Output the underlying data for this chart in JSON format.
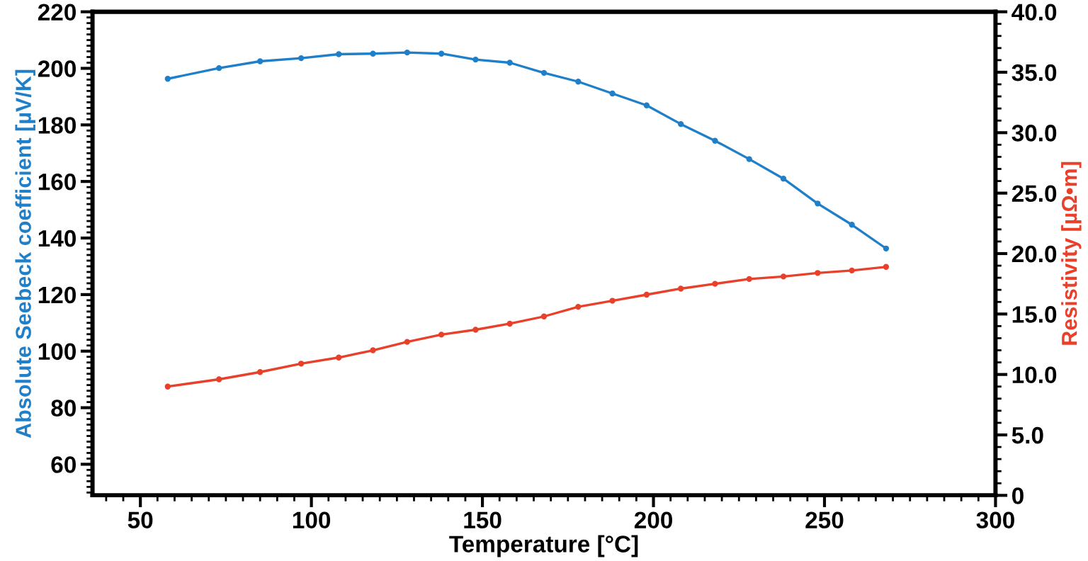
{
  "chart_data": {
    "type": "line",
    "xlabel": "Temperature [°C]",
    "ylabel": "Absolute Seebeck coefficient [µV/K]",
    "y2label": "Resistivity [µΩ•m]",
    "x": [
      58,
      73,
      85,
      97,
      108,
      118,
      128,
      138,
      148,
      158,
      168,
      178,
      188,
      198,
      208,
      218,
      228,
      238,
      248,
      258,
      268
    ],
    "series": [
      {
        "color": "#1f7fc8",
        "values": [
          196.3,
          200.1,
          202.5,
          203.6,
          205.0,
          205.2,
          205.6,
          205.2,
          203.1,
          202.0,
          198.4,
          195.3,
          191.1,
          186.9,
          180.3,
          174.4,
          167.9,
          161.0,
          152.2,
          144.7,
          136.3
        ]
      },
      {
        "color": "#e8402a",
        "axis": "y2",
        "values": [
          9.0,
          9.6,
          10.2,
          10.9,
          11.4,
          12.0,
          12.7,
          13.3,
          13.7,
          14.2,
          14.8,
          15.6,
          16.1,
          16.6,
          17.1,
          17.5,
          17.9,
          18.1,
          18.4,
          18.6,
          18.9
        ]
      }
    ],
    "xlim": [
      36,
      300
    ],
    "xticks": [
      50,
      100,
      150,
      200,
      250,
      300
    ],
    "ylim": [
      49,
      220
    ],
    "yticks": [
      60,
      80,
      100,
      120,
      140,
      160,
      180,
      200,
      220
    ],
    "y2lim": [
      0,
      40
    ],
    "y2ticks": [
      {
        "value": 0,
        "label": "0"
      },
      {
        "value": 5,
        "label": "5.0"
      },
      {
        "value": 10,
        "label": "10.0"
      },
      {
        "value": 15,
        "label": "15.0"
      },
      {
        "value": 20,
        "label": "20.0"
      },
      {
        "value": 25,
        "label": "25.0"
      },
      {
        "value": 30,
        "label": "30.0"
      },
      {
        "value": 35,
        "label": "35.0"
      },
      {
        "value": 40,
        "label": "40.0"
      }
    ],
    "marker": "circle",
    "line_style": "solid",
    "grid": false,
    "legend": false
  }
}
